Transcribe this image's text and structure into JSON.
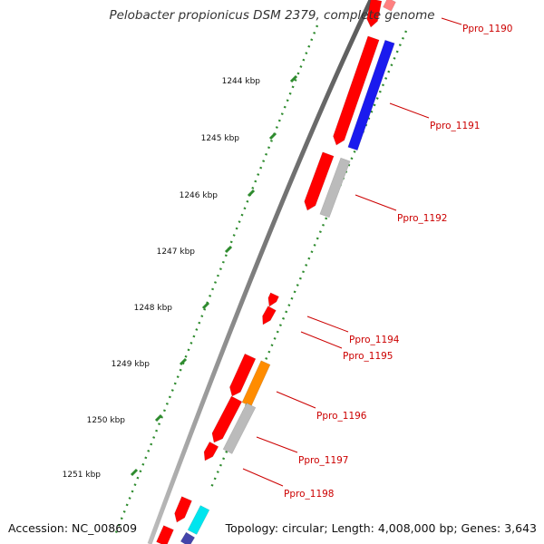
{
  "title": "Pelobacter propionicus DSM 2379, complete genome",
  "footer": {
    "accession": "Accession: NC_008609",
    "summary": "Topology: circular; Length: 4,008,000 bp; Genes: 3,643"
  },
  "colors": {
    "forward_gene": "#ff0000",
    "blue_feature": "#1a1aee",
    "grey_feature": "#bbbbbb",
    "orange_feature": "#ff8c00",
    "cyan_feature": "#00e5ee",
    "gene_label": "#cc0000",
    "ruler_dots": "#2e8b2e",
    "backbone": "#808080"
  },
  "ruler_labels": [
    "1244 kbp",
    "1245 kbp",
    "1246 kbp",
    "1247 kbp",
    "1248 kbp",
    "1249 kbp",
    "1250 kbp",
    "1251 kbp"
  ],
  "gene_labels": [
    "Ppro_1190",
    "Ppro_1191",
    "Ppro_1192",
    "Ppro_1194",
    "Ppro_1195",
    "Ppro_1196",
    "Ppro_1197",
    "Ppro_1198"
  ]
}
